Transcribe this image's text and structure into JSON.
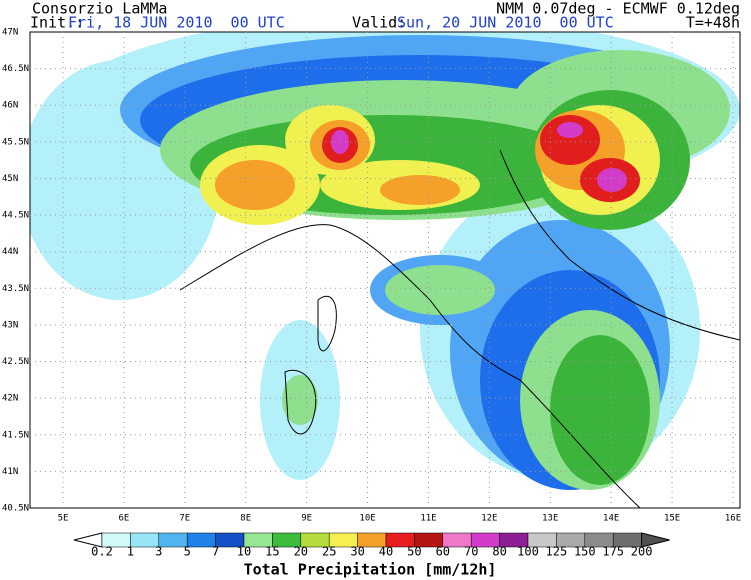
{
  "header": {
    "title": "Consorzio LaMMa",
    "model": "NMM 0.07deg - ECMWF 0.12deg",
    "init_label": "Init.:",
    "init": "Fri, 18 JUN 2010  00 UTC",
    "valid_label": "Valid:",
    "valid": "Sun, 20 JUN 2010  00 UTC",
    "lead": "T=+48h"
  },
  "map": {
    "lat_labels": [
      "47N",
      "46.5N",
      "46N",
      "45.5N",
      "45N",
      "44.5N",
      "44N",
      "43.5N",
      "43N",
      "42.5N",
      "42N",
      "41.5N",
      "41N",
      "40.5N"
    ],
    "lon_labels": [
      "5E",
      "6E",
      "7E",
      "8E",
      "9E",
      "10E",
      "11E",
      "12E",
      "13E",
      "14E",
      "15E",
      "16E"
    ]
  },
  "colorbar": {
    "labels": [
      "0.2",
      "1",
      "3",
      "5",
      "7",
      "10",
      "15",
      "20",
      "25",
      "30",
      "40",
      "50",
      "60",
      "70",
      "80",
      "100",
      "125",
      "150",
      "175",
      "200"
    ],
    "colors": [
      "#ffffff",
      "#d2fafa",
      "#96e6f5",
      "#50b4f0",
      "#1e82e6",
      "#1450c8",
      "#96e696",
      "#3cbe3c",
      "#b4dc3c",
      "#f5f050",
      "#f5a028",
      "#e61e1e",
      "#b41414",
      "#f078c8",
      "#d23cc8",
      "#8c1e96",
      "#c8c8c8",
      "#aaaaaa",
      "#8c8c8c",
      "#6e6e6e",
      "#505050"
    ],
    "caption": "Total Precipitation [mm/12h]"
  }
}
